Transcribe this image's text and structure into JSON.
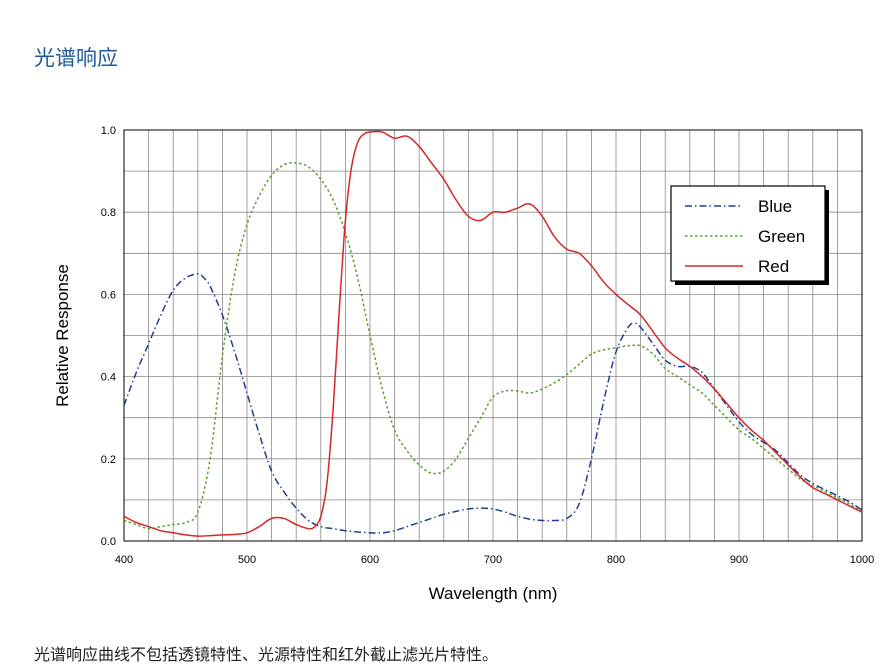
{
  "heading": "光谱响应",
  "footnote": "光谱响应曲线不包括透镜特性、光源特性和红外截止滤光片特性。",
  "chart_data": {
    "type": "line",
    "title": "",
    "xlabel": "Wavelength (nm)",
    "ylabel": "Relative Response",
    "xlim": [
      400,
      1000
    ],
    "ylim": [
      0,
      1.0
    ],
    "x_ticks": [
      400,
      500,
      600,
      700,
      800,
      900,
      1000
    ],
    "y_ticks": [
      0.0,
      0.2,
      0.4,
      0.6,
      0.8,
      1.0
    ],
    "y_tick_labels": [
      "0.0",
      "0.2",
      "0.4",
      "0.6",
      "0.8",
      "1.0"
    ],
    "grid": true,
    "legend_position": "top-right",
    "series": [
      {
        "name": "Blue",
        "color": "#1f3f8f",
        "dash": "dashdot",
        "x": [
          400,
          410,
          420,
          430,
          440,
          450,
          460,
          465,
          470,
          480,
          490,
          500,
          510,
          520,
          530,
          540,
          550,
          560,
          570,
          580,
          590,
          600,
          610,
          620,
          630,
          640,
          650,
          660,
          670,
          680,
          690,
          700,
          710,
          720,
          730,
          740,
          750,
          760,
          770,
          780,
          790,
          800,
          810,
          815,
          820,
          830,
          840,
          850,
          860,
          870,
          880,
          890,
          900,
          910,
          920,
          930,
          940,
          950,
          960,
          970,
          980,
          990,
          1000
        ],
        "y": [
          0.33,
          0.41,
          0.48,
          0.55,
          0.61,
          0.64,
          0.65,
          0.64,
          0.62,
          0.55,
          0.46,
          0.36,
          0.26,
          0.17,
          0.12,
          0.08,
          0.05,
          0.035,
          0.03,
          0.025,
          0.022,
          0.02,
          0.02,
          0.025,
          0.035,
          0.045,
          0.055,
          0.065,
          0.072,
          0.078,
          0.08,
          0.078,
          0.07,
          0.06,
          0.053,
          0.05,
          0.05,
          0.055,
          0.09,
          0.2,
          0.34,
          0.46,
          0.52,
          0.53,
          0.52,
          0.48,
          0.44,
          0.425,
          0.425,
          0.41,
          0.37,
          0.33,
          0.29,
          0.26,
          0.24,
          0.22,
          0.19,
          0.16,
          0.14,
          0.125,
          0.11,
          0.095,
          0.075
        ]
      },
      {
        "name": "Green",
        "color": "#5aa02c",
        "dash": "dotted",
        "x": [
          400,
          410,
          420,
          430,
          440,
          450,
          460,
          470,
          480,
          490,
          500,
          510,
          520,
          530,
          540,
          550,
          560,
          570,
          580,
          590,
          600,
          610,
          620,
          630,
          640,
          650,
          660,
          670,
          680,
          690,
          700,
          710,
          720,
          730,
          740,
          750,
          760,
          770,
          780,
          790,
          800,
          810,
          820,
          830,
          840,
          850,
          860,
          870,
          880,
          890,
          900,
          910,
          920,
          930,
          940,
          950,
          960,
          970,
          980,
          990,
          1000
        ],
        "y": [
          0.05,
          0.04,
          0.03,
          0.035,
          0.04,
          0.045,
          0.07,
          0.2,
          0.45,
          0.65,
          0.77,
          0.84,
          0.89,
          0.915,
          0.92,
          0.91,
          0.88,
          0.83,
          0.75,
          0.64,
          0.5,
          0.37,
          0.27,
          0.22,
          0.185,
          0.165,
          0.17,
          0.2,
          0.25,
          0.3,
          0.35,
          0.365,
          0.365,
          0.36,
          0.37,
          0.385,
          0.405,
          0.43,
          0.455,
          0.465,
          0.47,
          0.475,
          0.475,
          0.455,
          0.42,
          0.4,
          0.38,
          0.36,
          0.33,
          0.3,
          0.27,
          0.25,
          0.225,
          0.2,
          0.175,
          0.15,
          0.135,
          0.12,
          0.105,
          0.09,
          0.07
        ]
      },
      {
        "name": "Red",
        "color": "#d62728",
        "dash": "solid",
        "x": [
          400,
          410,
          420,
          430,
          440,
          450,
          460,
          470,
          480,
          490,
          500,
          510,
          520,
          530,
          540,
          550,
          555,
          560,
          565,
          570,
          575,
          580,
          585,
          590,
          595,
          600,
          610,
          620,
          630,
          640,
          650,
          660,
          670,
          680,
          690,
          700,
          710,
          720,
          730,
          740,
          750,
          760,
          770,
          780,
          790,
          800,
          810,
          820,
          830,
          840,
          850,
          860,
          870,
          880,
          890,
          900,
          910,
          920,
          930,
          940,
          950,
          960,
          970,
          980,
          990,
          1000
        ],
        "y": [
          0.06,
          0.045,
          0.035,
          0.025,
          0.02,
          0.015,
          0.012,
          0.013,
          0.015,
          0.016,
          0.02,
          0.035,
          0.055,
          0.055,
          0.04,
          0.03,
          0.035,
          0.06,
          0.14,
          0.32,
          0.56,
          0.78,
          0.91,
          0.97,
          0.99,
          0.995,
          0.995,
          0.98,
          0.985,
          0.96,
          0.92,
          0.88,
          0.83,
          0.79,
          0.78,
          0.8,
          0.8,
          0.81,
          0.82,
          0.79,
          0.74,
          0.71,
          0.7,
          0.67,
          0.63,
          0.6,
          0.575,
          0.55,
          0.51,
          0.47,
          0.445,
          0.425,
          0.4,
          0.37,
          0.335,
          0.3,
          0.27,
          0.245,
          0.215,
          0.185,
          0.155,
          0.13,
          0.115,
          0.1,
          0.085,
          0.07
        ]
      }
    ]
  }
}
